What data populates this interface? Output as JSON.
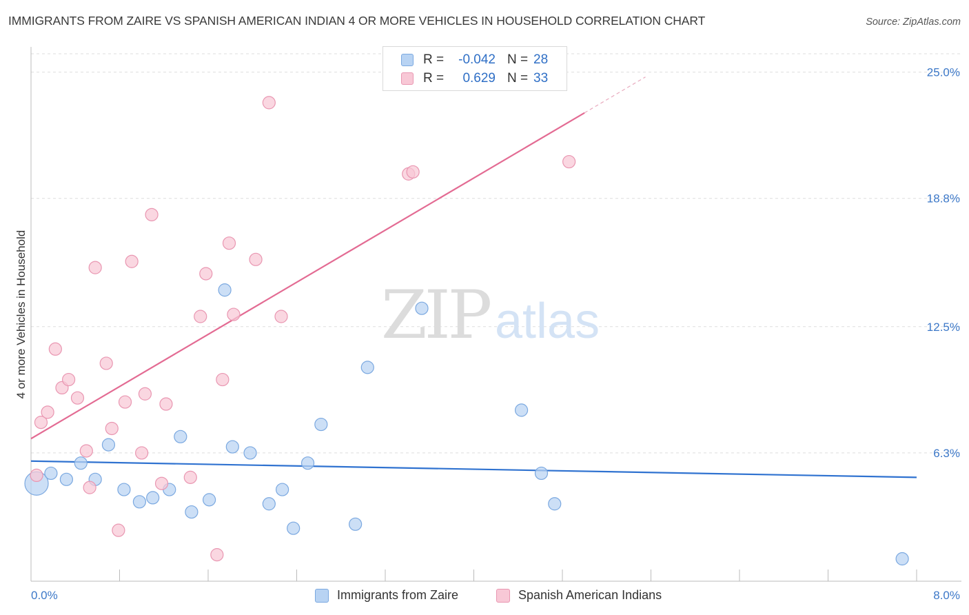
{
  "title": "IMMIGRANTS FROM ZAIRE VS SPANISH AMERICAN INDIAN 4 OR MORE VEHICLES IN HOUSEHOLD CORRELATION CHART",
  "source": "Source: ZipAtlas.com",
  "watermark": {
    "zip": "ZIP",
    "atlas": "atlas"
  },
  "legend": {
    "rows": [
      {
        "r_label": "R =",
        "r_value": "-0.042",
        "n_label": "N =",
        "n_value": "28"
      },
      {
        "r_label": "R =",
        "r_value": "0.629",
        "n_label": "N =",
        "n_value": "33"
      }
    ]
  },
  "bottom_legend": {
    "series1": "Immigrants from Zaire",
    "series2": "Spanish American Indians"
  },
  "colors": {
    "blue_fill": "#b8d3f3",
    "blue_stroke": "#7aa8e0",
    "blue_line": "#2f72d0",
    "pink_fill": "#f8c8d6",
    "pink_stroke": "#e996b1",
    "pink_line": "#e36b93",
    "grid": "#dddddd",
    "tick_text": "#3c78c8"
  },
  "chart_data": {
    "type": "scatter",
    "title": "IMMIGRANTS FROM ZAIRE VS SPANISH AMERICAN INDIAN 4 OR MORE VEHICLES IN HOUSEHOLD CORRELATION CHART",
    "xlabel": "",
    "ylabel": "4 or more Vehicles in Household",
    "xlim": [
      0,
      8
    ],
    "ylim": [
      0,
      25
    ],
    "x_tick_labels": [
      "0.0%",
      "8.0%"
    ],
    "y_ticks": [
      6.3,
      12.5,
      18.8,
      25.0
    ],
    "y_tick_labels": [
      "6.3%",
      "12.5%",
      "18.8%",
      "25.0%"
    ],
    "grid": "horizontal dashed",
    "series": [
      {
        "name": "Immigrants from Zaire",
        "color": "blue",
        "trend": {
          "x": [
            0,
            8
          ],
          "y": [
            5.9,
            5.1
          ]
        },
        "points": [
          {
            "x": 0.05,
            "y": 4.8,
            "big": true
          },
          {
            "x": 0.18,
            "y": 5.3
          },
          {
            "x": 0.32,
            "y": 5.0
          },
          {
            "x": 0.45,
            "y": 5.8
          },
          {
            "x": 0.58,
            "y": 5.0
          },
          {
            "x": 0.7,
            "y": 6.7
          },
          {
            "x": 0.84,
            "y": 4.5
          },
          {
            "x": 0.98,
            "y": 3.9
          },
          {
            "x": 1.1,
            "y": 4.1
          },
          {
            "x": 1.25,
            "y": 4.5
          },
          {
            "x": 1.35,
            "y": 7.1
          },
          {
            "x": 1.45,
            "y": 3.4
          },
          {
            "x": 1.61,
            "y": 4.0
          },
          {
            "x": 1.75,
            "y": 14.3
          },
          {
            "x": 1.82,
            "y": 6.6
          },
          {
            "x": 1.98,
            "y": 6.3
          },
          {
            "x": 2.15,
            "y": 3.8
          },
          {
            "x": 2.27,
            "y": 4.5
          },
          {
            "x": 2.37,
            "y": 2.6
          },
          {
            "x": 2.5,
            "y": 5.8
          },
          {
            "x": 2.62,
            "y": 7.7
          },
          {
            "x": 2.93,
            "y": 2.8
          },
          {
            "x": 3.04,
            "y": 10.5
          },
          {
            "x": 3.53,
            "y": 13.4
          },
          {
            "x": 4.43,
            "y": 8.4
          },
          {
            "x": 4.61,
            "y": 5.3
          },
          {
            "x": 4.73,
            "y": 3.8
          },
          {
            "x": 7.87,
            "y": 1.1
          }
        ]
      },
      {
        "name": "Spanish American Indians",
        "color": "pink",
        "trend": {
          "x": [
            0,
            5
          ],
          "y": [
            7.0,
            23.0
          ]
        },
        "points": [
          {
            "x": 0.05,
            "y": 5.2
          },
          {
            "x": 0.09,
            "y": 7.8
          },
          {
            "x": 0.15,
            "y": 8.3
          },
          {
            "x": 0.22,
            "y": 11.4
          },
          {
            "x": 0.28,
            "y": 9.5
          },
          {
            "x": 0.34,
            "y": 9.9
          },
          {
            "x": 0.42,
            "y": 9.0
          },
          {
            "x": 0.5,
            "y": 6.4
          },
          {
            "x": 0.53,
            "y": 4.6
          },
          {
            "x": 0.58,
            "y": 15.4
          },
          {
            "x": 0.68,
            "y": 10.7
          },
          {
            "x": 0.73,
            "y": 7.5
          },
          {
            "x": 0.79,
            "y": 2.5
          },
          {
            "x": 0.85,
            "y": 8.8
          },
          {
            "x": 0.91,
            "y": 15.7
          },
          {
            "x": 1.0,
            "y": 6.3
          },
          {
            "x": 1.03,
            "y": 9.2
          },
          {
            "x": 1.09,
            "y": 18.0
          },
          {
            "x": 1.18,
            "y": 4.8
          },
          {
            "x": 1.22,
            "y": 8.7
          },
          {
            "x": 1.44,
            "y": 5.1
          },
          {
            "x": 1.53,
            "y": 13.0
          },
          {
            "x": 1.58,
            "y": 15.1
          },
          {
            "x": 1.68,
            "y": 1.3
          },
          {
            "x": 1.73,
            "y": 9.9
          },
          {
            "x": 1.79,
            "y": 16.6
          },
          {
            "x": 1.83,
            "y": 13.1
          },
          {
            "x": 2.03,
            "y": 15.8
          },
          {
            "x": 2.15,
            "y": 23.5
          },
          {
            "x": 2.26,
            "y": 13.0
          },
          {
            "x": 3.41,
            "y": 20.0
          },
          {
            "x": 3.45,
            "y": 20.1
          },
          {
            "x": 4.86,
            "y": 20.6
          }
        ]
      }
    ]
  }
}
